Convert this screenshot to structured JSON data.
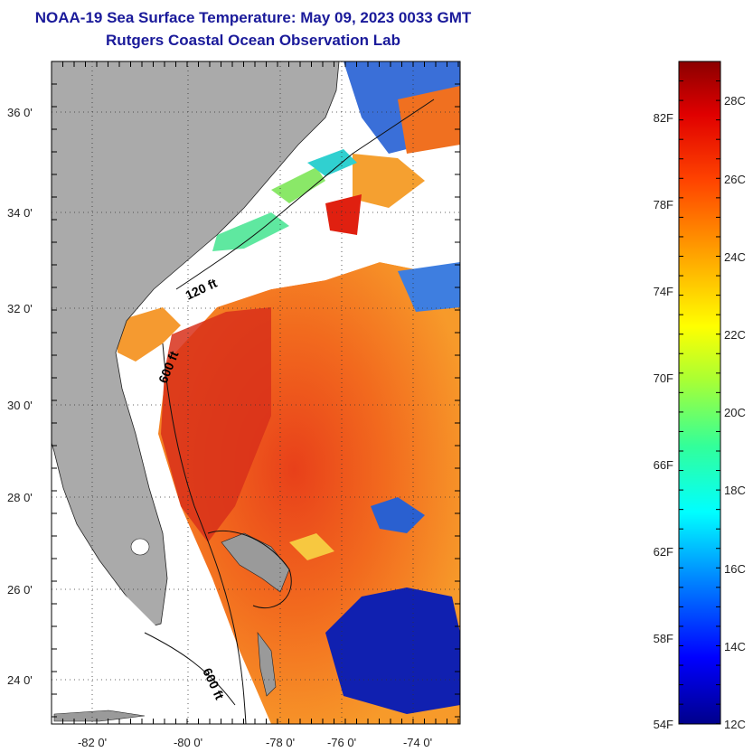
{
  "title_line1": "NOAA-19 Sea Surface Temperature:  May 09, 2023 0033 GMT",
  "title_line2": "Rutgers Coastal Ocean Observation Lab",
  "map": {
    "lon_range": [
      -83,
      -73
    ],
    "lat_range": [
      23,
      37
    ],
    "x_ticks": [
      "-82 0'",
      "-80 0'",
      "-78 0'",
      "-76 0'",
      "-74 0'"
    ],
    "y_ticks": [
      "36 0'",
      "34 0'",
      "32 0'",
      "30 0'",
      "28 0'",
      "26 0'",
      "24 0'"
    ],
    "grid": "dotted",
    "land_color": "#aaaaaa",
    "contour_labels": [
      "120 ft",
      "600 ft",
      "600 ft"
    ]
  },
  "colorbar": {
    "fahrenheit_labels": [
      "82F",
      "78F",
      "74F",
      "70F",
      "66F",
      "62F",
      "58F",
      "54F"
    ],
    "celsius_labels": [
      "28C",
      "26C",
      "24C",
      "22C",
      "20C",
      "18C",
      "16C",
      "14C",
      "12C"
    ],
    "range_c": [
      12,
      29
    ],
    "colors": [
      "#00008b",
      "#0000ff",
      "#00aaff",
      "#00ffff",
      "#33ff99",
      "#aaff33",
      "#ffff00",
      "#ffaa00",
      "#ff5500",
      "#ff0000",
      "#8b0000"
    ]
  }
}
